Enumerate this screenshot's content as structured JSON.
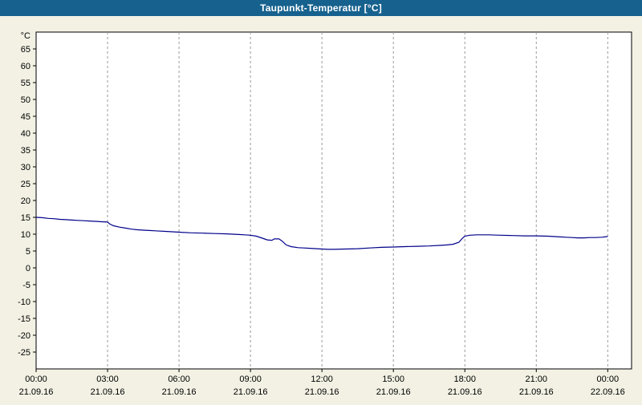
{
  "title_bar": {
    "title": "Taupunkt-Temperatur [°C]"
  },
  "colors": {
    "title_bg": "#16618e",
    "title_text": "#ffffff",
    "page_bg": "#f2f1e4",
    "plot_bg": "#ffffff",
    "axis": "#000000",
    "grid": "#9a9a9a",
    "line": "#00008b"
  },
  "chart_data": {
    "type": "line",
    "title": "Taupunkt-Temperatur [°C]",
    "ylabel": "°C",
    "ylim": [
      -30,
      70
    ],
    "y_ticks": [
      -25,
      -20,
      -15,
      -10,
      -5,
      0,
      5,
      10,
      15,
      20,
      25,
      30,
      35,
      40,
      45,
      50,
      55,
      60,
      65
    ],
    "xlim_hours": [
      0,
      25
    ],
    "grid": "vertical-dashed",
    "legend": "none",
    "x_ticks": [
      {
        "hour": 0,
        "label": "00:00",
        "date": "21.09.16"
      },
      {
        "hour": 3,
        "label": "03:00",
        "date": "21.09.16"
      },
      {
        "hour": 6,
        "label": "06:00",
        "date": "21.09.16"
      },
      {
        "hour": 9,
        "label": "09:00",
        "date": "21.09.16"
      },
      {
        "hour": 12,
        "label": "12:00",
        "date": "21.09.16"
      },
      {
        "hour": 15,
        "label": "15:00",
        "date": "21.09.16"
      },
      {
        "hour": 18,
        "label": "18:00",
        "date": "21.09.16"
      },
      {
        "hour": 21,
        "label": "21:00",
        "date": "21.09.16"
      },
      {
        "hour": 24,
        "label": "00:00",
        "date": "22.09.16"
      }
    ],
    "series": [
      {
        "name": "Taupunkt-Temperatur",
        "points": [
          [
            0,
            15.0
          ],
          [
            0.25,
            14.9
          ],
          [
            0.5,
            14.7
          ],
          [
            0.75,
            14.6
          ],
          [
            1,
            14.4
          ],
          [
            1.25,
            14.3
          ],
          [
            1.5,
            14.2
          ],
          [
            1.75,
            14.1
          ],
          [
            2,
            14.0
          ],
          [
            2.25,
            13.9
          ],
          [
            2.5,
            13.8
          ],
          [
            2.75,
            13.7
          ],
          [
            3,
            13.6
          ],
          [
            3.1,
            13.0
          ],
          [
            3.25,
            12.5
          ],
          [
            3.5,
            12.1
          ],
          [
            3.75,
            11.8
          ],
          [
            4,
            11.5
          ],
          [
            4.25,
            11.3
          ],
          [
            4.5,
            11.2
          ],
          [
            4.75,
            11.1
          ],
          [
            5,
            11.0
          ],
          [
            5.5,
            10.8
          ],
          [
            6,
            10.6
          ],
          [
            6.5,
            10.4
          ],
          [
            7,
            10.3
          ],
          [
            7.5,
            10.2
          ],
          [
            8,
            10.1
          ],
          [
            8.25,
            10.0
          ],
          [
            8.5,
            9.9
          ],
          [
            8.75,
            9.8
          ],
          [
            9,
            9.7
          ],
          [
            9.25,
            9.4
          ],
          [
            9.5,
            8.8
          ],
          [
            9.7,
            8.3
          ],
          [
            9.9,
            8.2
          ],
          [
            10,
            8.6
          ],
          [
            10.2,
            8.6
          ],
          [
            10.35,
            7.8
          ],
          [
            10.5,
            6.8
          ],
          [
            10.7,
            6.3
          ],
          [
            11,
            6.0
          ],
          [
            11.25,
            5.9
          ],
          [
            11.5,
            5.8
          ],
          [
            12,
            5.6
          ],
          [
            12.25,
            5.5
          ],
          [
            12.5,
            5.5
          ],
          [
            13,
            5.6
          ],
          [
            13.5,
            5.7
          ],
          [
            14,
            5.9
          ],
          [
            14.5,
            6.1
          ],
          [
            15,
            6.2
          ],
          [
            15.5,
            6.3
          ],
          [
            16,
            6.4
          ],
          [
            16.5,
            6.5
          ],
          [
            17,
            6.7
          ],
          [
            17.25,
            6.8
          ],
          [
            17.5,
            7.0
          ],
          [
            17.75,
            7.6
          ],
          [
            17.9,
            8.8
          ],
          [
            18,
            9.4
          ],
          [
            18.2,
            9.7
          ],
          [
            18.5,
            9.8
          ],
          [
            18.75,
            9.8
          ],
          [
            19,
            9.8
          ],
          [
            19.5,
            9.7
          ],
          [
            20,
            9.6
          ],
          [
            20.5,
            9.5
          ],
          [
            21,
            9.5
          ],
          [
            21.5,
            9.4
          ],
          [
            22,
            9.2
          ],
          [
            22.25,
            9.1
          ],
          [
            22.5,
            9.0
          ],
          [
            22.75,
            8.9
          ],
          [
            23,
            8.9
          ],
          [
            23.25,
            9.0
          ],
          [
            23.5,
            9.0
          ],
          [
            23.75,
            9.1
          ],
          [
            24,
            9.3
          ]
        ]
      }
    ]
  }
}
